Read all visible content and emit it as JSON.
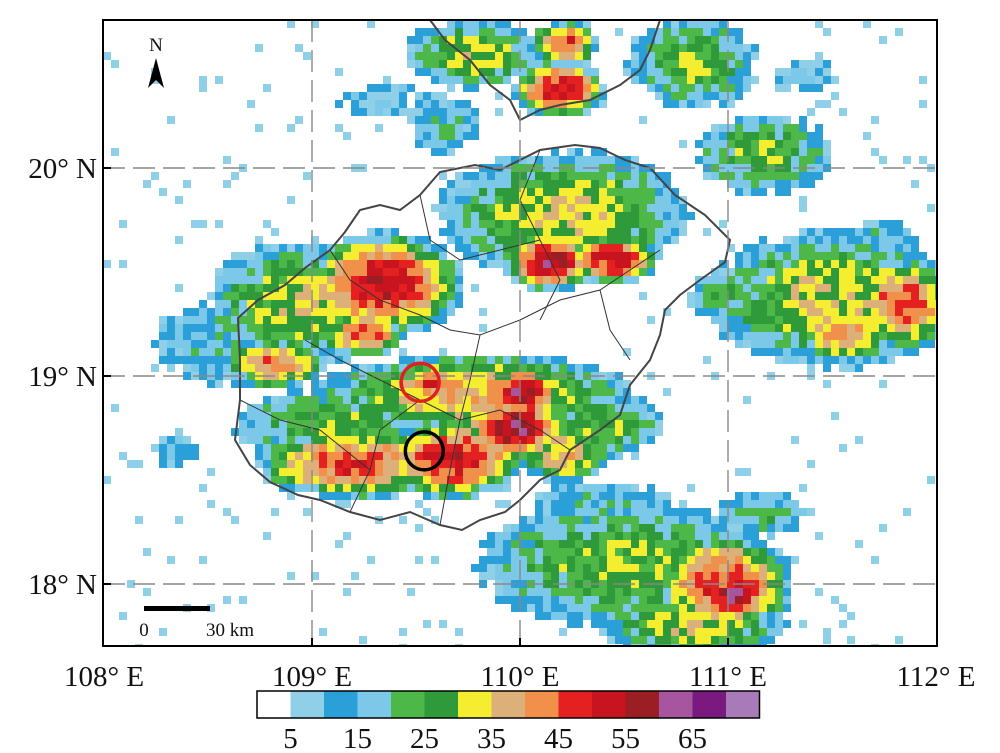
{
  "map": {
    "x_ticks": [
      "108° E",
      "109° E",
      "110° E",
      "111° E",
      "112° E"
    ],
    "y_ticks": [
      "20° N",
      "19° N",
      "18° N"
    ],
    "north_label": "N",
    "scale_bar": {
      "start_label": "0",
      "end_label": "30 km"
    },
    "markers": [
      {
        "name": "red-circle-marker",
        "lon": 109.52,
        "lat": 18.97,
        "color": "#e02020"
      },
      {
        "name": "black-circle-marker",
        "lon": 109.54,
        "lat": 18.64,
        "color": "#000000"
      }
    ]
  },
  "legend": {
    "colors": [
      "#ffffff",
      "#8fd0e8",
      "#2a9fd8",
      "#7cc8e8",
      "#4db848",
      "#2e9a3a",
      "#f5ee30",
      "#dcb078",
      "#f0904a",
      "#e52020",
      "#c8141e",
      "#9a1e24",
      "#a855a0",
      "#7a1a80",
      "#a87ab8"
    ],
    "labels": [
      "5",
      "15",
      "25",
      "35",
      "45",
      "55",
      "65"
    ]
  },
  "colors": {
    "axis": "#000000",
    "grid": "#888888",
    "coastline": "#444444"
  }
}
